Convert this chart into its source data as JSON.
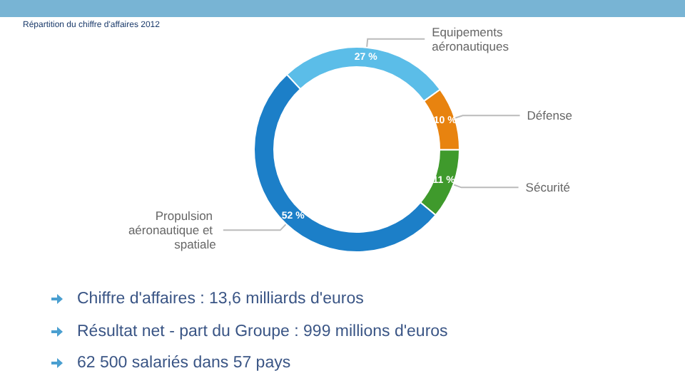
{
  "chart_data": {
    "type": "donut",
    "title": "Répartition du chiffre d'affaires 2012",
    "categories": [
      "Equipements aéronautiques",
      "Défense",
      "Sécurité",
      "Propulsion aéronautique et spatiale"
    ],
    "values": [
      27,
      10,
      11,
      52
    ],
    "value_labels": [
      "27 %",
      "10 %",
      "11 %",
      "52 %"
    ],
    "colors": [
      "#5bbde8",
      "#e8830f",
      "#3f9a2c",
      "#1c7fc8"
    ],
    "annotations": [
      "Chiffre d'affaires :  13,6 milliards d'euros",
      "Résultat net - part du Groupe : 999 millions d'euros",
      "62 500 salariés dans 57 pays"
    ]
  }
}
